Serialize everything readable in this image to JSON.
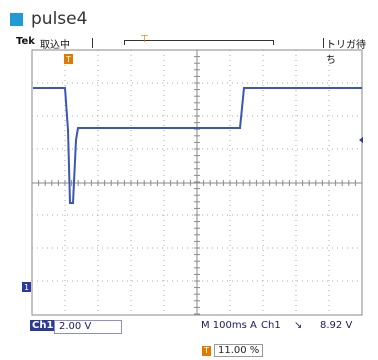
{
  "caption": {
    "text": "pulse4",
    "color": "#1f9bd6"
  },
  "status_bar": {
    "brand": "Tek",
    "acquire_state": "取込中",
    "trigger_state": "トリガ待ち"
  },
  "readout": {
    "channel_tag": "Ch1",
    "volts_per_div": "2.00 V",
    "timebase": "M 100ms",
    "trigger_source_prefix": "A",
    "trigger_channel": "Ch1",
    "trigger_slope_symbol": "↘",
    "trigger_level": "8.92 V",
    "horizontal_position": "11.00 %"
  },
  "colors": {
    "trace": "#3a56b8",
    "grid": "#9a9a9a",
    "trigger_marker": "#e07a00",
    "ground_marker": "#2b3a9a"
  },
  "icons": {
    "trigger_position": "orange-t-marker",
    "channel_ground": "channel-1-ground-marker",
    "trigger_level": "left-arrow-marker"
  }
}
